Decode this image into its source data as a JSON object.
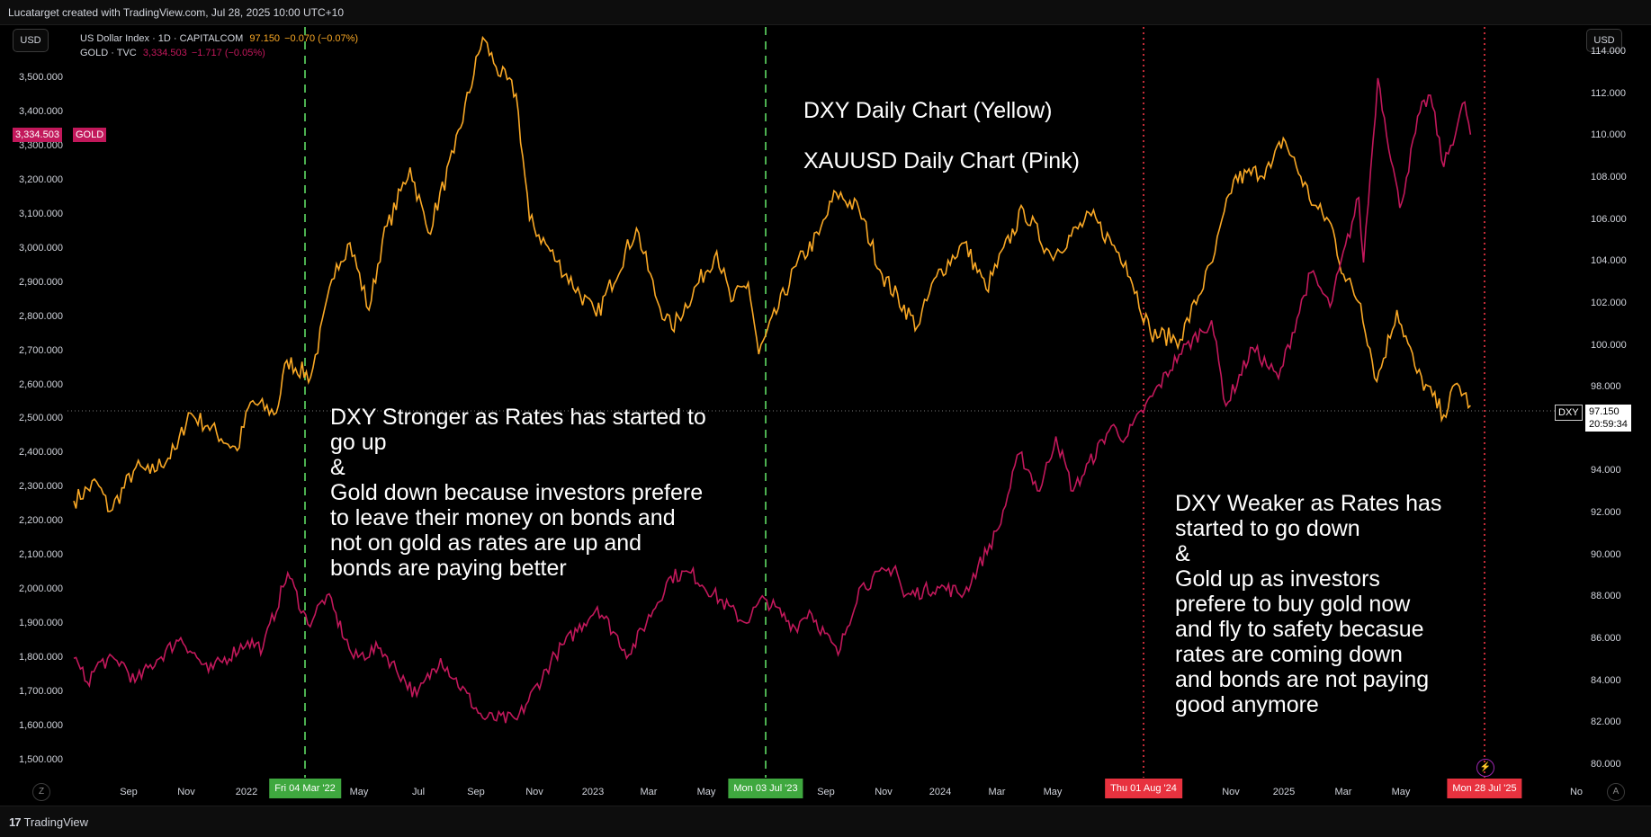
{
  "header": {
    "title": "Lucatarget created with TradingView.com, Jul 28, 2025 10:00 UTC+10"
  },
  "left_currency": "USD",
  "right_currency": "USD",
  "legend": [
    {
      "symbol": "US Dollar Index · 1D · CAPITALCOM",
      "price": "97.150",
      "change": "−0.070 (−0.07%)",
      "color": "#f9a825"
    },
    {
      "symbol": "GOLD · TVC",
      "price": "3,334.503",
      "change": "−1.717 (−0.05%)",
      "color": "#c2185b"
    }
  ],
  "price_badges": {
    "gold_price": "3,334.503",
    "gold_tag": "GOLD",
    "dxy_tag": "DXY",
    "dxy_price": "97.150",
    "dxy_countdown": "20:59:34"
  },
  "annotations": {
    "title_line1": "DXY Daily Chart (Yellow)",
    "title_line2": "XAUUSD Daily Chart (Pink)",
    "left_text": "DXY Stronger as Rates has started to\ngo up\n&\nGold down because investors prefere\nto leave their money on bonds and\nnot on gold as rates are up and\nbonds are paying better",
    "right_text": "DXY Weaker as Rates has\nstarted to go down\n&\nGold up as investors\nprefere to buy gold now\nand fly to safety becasue\nrates are coming down\nand bonds are not paying\ngood anymore"
  },
  "footer": {
    "brand": "TradingView",
    "logo_glyph": "17"
  },
  "nav": {
    "left_btn": "Z",
    "right_btn": "A"
  },
  "chart_data": {
    "type": "line",
    "x_ticks": [
      "Sep",
      "Nov",
      "2022",
      "May",
      "Jul",
      "Sep",
      "Nov",
      "2023",
      "Mar",
      "May",
      "Sep",
      "Nov",
      "2024",
      "Mar",
      "May",
      "Nov",
      "2025",
      "Mar",
      "May",
      "No"
    ],
    "x_markers": [
      {
        "label": "Fri 04 Mar '22",
        "color": "#4caf50",
        "style": "dashed"
      },
      {
        "label": "Mon 03 Jul '23",
        "color": "#4caf50",
        "style": "dashed"
      },
      {
        "label": "Thu 01 Aug '24",
        "color": "#f23645",
        "style": "dotted"
      },
      {
        "label": "Mon 28 Jul '25",
        "color": "#f23645",
        "style": "dotted"
      }
    ],
    "left_axis": {
      "ticks": [
        "3,500.000",
        "3,400.000",
        "3,300.000",
        "3,200.000",
        "3,100.000",
        "3,000.000",
        "2,900.000",
        "2,800.000",
        "2,700.000",
        "2,600.000",
        "2,500.000",
        "2,400.000",
        "2,300.000",
        "2,200.000",
        "2,100.000",
        "2,000.000",
        "1,900.000",
        "1,800.000",
        "1,700.000",
        "1,600.000",
        "1,500.000"
      ],
      "range": [
        1450,
        3650
      ]
    },
    "right_axis": {
      "ticks": [
        "114.000",
        "112.000",
        "110.000",
        "108.000",
        "106.000",
        "104.000",
        "102.000",
        "100.000",
        "98.000",
        "96.000",
        "94.000",
        "92.000",
        "90.000",
        "88.000",
        "86.000",
        "84.000",
        "82.000",
        "80.000"
      ],
      "range": [
        79.4,
        115.2
      ]
    },
    "series": [
      {
        "color": "#f9a825",
        "axis": "right",
        "points": [
          [
            "2021-07-27",
            92.6
          ],
          [
            "2021-08-20",
            93.5
          ],
          [
            "2021-09-03",
            92.1
          ],
          [
            "2021-09-30",
            94.2
          ],
          [
            "2021-10-15",
            93.9
          ],
          [
            "2021-11-12",
            95.1
          ],
          [
            "2021-11-24",
            96.8
          ],
          [
            "2021-12-14",
            96.2
          ],
          [
            "2022-01-14",
            95.0
          ],
          [
            "2022-01-28",
            97.3
          ],
          [
            "2022-02-24",
            96.8
          ],
          [
            "2022-03-07",
            99.3
          ],
          [
            "2022-04-01",
            98.5
          ],
          [
            "2022-04-28",
            103.9
          ],
          [
            "2022-05-12",
            104.9
          ],
          [
            "2022-06-01",
            101.7
          ],
          [
            "2022-06-15",
            105.0
          ],
          [
            "2022-07-14",
            108.5
          ],
          [
            "2022-08-02",
            105.4
          ],
          [
            "2022-08-29",
            109.2
          ],
          [
            "2022-09-28",
            114.7
          ],
          [
            "2022-10-12",
            113.3
          ],
          [
            "2022-11-02",
            112.0
          ],
          [
            "2022-11-16",
            106.0
          ],
          [
            "2022-12-15",
            104.0
          ],
          [
            "2023-01-25",
            101.4
          ],
          [
            "2023-03-08",
            105.6
          ],
          [
            "2023-03-30",
            102.1
          ],
          [
            "2023-04-14",
            100.8
          ],
          [
            "2023-05-31",
            104.5
          ],
          [
            "2023-06-15",
            102.1
          ],
          [
            "2023-07-03",
            103.0
          ],
          [
            "2023-07-14",
            99.6
          ],
          [
            "2023-08-22",
            103.8
          ],
          [
            "2023-09-15",
            105.3
          ],
          [
            "2023-10-03",
            107.3
          ],
          [
            "2023-10-27",
            106.5
          ],
          [
            "2023-11-20",
            103.4
          ],
          [
            "2023-12-27",
            100.9
          ],
          [
            "2024-01-16",
            103.3
          ],
          [
            "2024-02-14",
            104.9
          ],
          [
            "2024-03-08",
            102.7
          ],
          [
            "2024-04-16",
            106.5
          ],
          [
            "2024-05-15",
            104.3
          ],
          [
            "2024-06-26",
            106.2
          ],
          [
            "2024-08-01",
            104.0
          ],
          [
            "2024-08-27",
            100.6
          ],
          [
            "2024-09-27",
            100.3
          ],
          [
            "2024-10-31",
            104.0
          ],
          [
            "2024-11-22",
            107.9
          ],
          [
            "2024-12-31",
            108.5
          ],
          [
            "2025-01-13",
            109.9
          ],
          [
            "2025-02-14",
            106.7
          ],
          [
            "2025-03-04",
            105.8
          ],
          [
            "2025-03-17",
            103.4
          ],
          [
            "2025-04-04",
            102.0
          ],
          [
            "2025-04-21",
            98.3
          ],
          [
            "2025-05-12",
            101.7
          ],
          [
            "2025-06-02",
            98.7
          ],
          [
            "2025-06-30",
            96.7
          ],
          [
            "2025-07-14",
            98.2
          ],
          [
            "2025-07-28",
            97.15
          ]
        ]
      },
      {
        "color": "#c2185b",
        "axis": "left",
        "points": [
          [
            "2021-07-27",
            1800
          ],
          [
            "2021-08-10",
            1730
          ],
          [
            "2021-08-24",
            1790
          ],
          [
            "2021-09-15",
            1790
          ],
          [
            "2021-09-29",
            1730
          ],
          [
            "2021-10-22",
            1795
          ],
          [
            "2021-11-16",
            1860
          ],
          [
            "2021-12-15",
            1760
          ],
          [
            "2022-01-25",
            1850
          ],
          [
            "2022-02-10",
            1830
          ],
          [
            "2022-03-08",
            2050
          ],
          [
            "2022-03-29",
            1900
          ],
          [
            "2022-04-18",
            1985
          ],
          [
            "2022-05-16",
            1800
          ],
          [
            "2022-06-13",
            1830
          ],
          [
            "2022-07-21",
            1690
          ],
          [
            "2022-08-15",
            1800
          ],
          [
            "2022-09-28",
            1625
          ],
          [
            "2022-11-03",
            1620
          ],
          [
            "2022-12-13",
            1810
          ],
          [
            "2023-01-26",
            1950
          ],
          [
            "2023-02-28",
            1810
          ],
          [
            "2023-04-13",
            2040
          ],
          [
            "2023-05-04",
            2050
          ],
          [
            "2023-06-29",
            1905
          ],
          [
            "2023-07-20",
            1975
          ],
          [
            "2023-08-21",
            1890
          ],
          [
            "2023-09-05",
            1940
          ],
          [
            "2023-10-05",
            1810
          ],
          [
            "2023-10-27",
            2005
          ],
          [
            "2023-12-04",
            2070
          ],
          [
            "2023-12-13",
            1980
          ],
          [
            "2024-01-17",
            2010
          ],
          [
            "2024-02-14",
            1990
          ],
          [
            "2024-03-21",
            2180
          ],
          [
            "2024-04-12",
            2400
          ],
          [
            "2024-05-03",
            2290
          ],
          [
            "2024-05-20",
            2450
          ],
          [
            "2024-06-07",
            2290
          ],
          [
            "2024-07-17",
            2480
          ],
          [
            "2024-08-01",
            2445
          ],
          [
            "2024-09-26",
            2690
          ],
          [
            "2024-10-30",
            2790
          ],
          [
            "2024-11-14",
            2540
          ],
          [
            "2024-12-12",
            2710
          ],
          [
            "2025-01-08",
            2620
          ],
          [
            "2025-02-11",
            2930
          ],
          [
            "2025-03-03",
            2830
          ],
          [
            "2025-04-02",
            3150
          ],
          [
            "2025-04-07",
            2960
          ],
          [
            "2025-04-22",
            3500
          ],
          [
            "2025-05-15",
            3120
          ],
          [
            "2025-06-05",
            3400
          ],
          [
            "2025-06-16",
            3450
          ],
          [
            "2025-06-30",
            3240
          ],
          [
            "2025-07-22",
            3430
          ],
          [
            "2025-07-28",
            3334.5
          ]
        ]
      }
    ]
  }
}
